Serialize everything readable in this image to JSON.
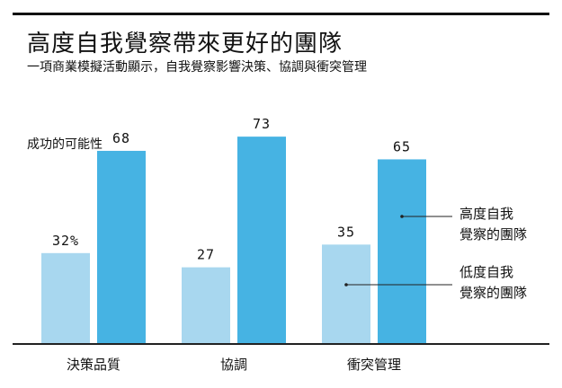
{
  "title": "高度自我覺察帶來更好的團隊",
  "subtitle": "一項商業模擬活動顯示，自我覺察影響決策、協調與衝突管理",
  "colors": {
    "high": "#46b3e3",
    "low": "#a8d7ef",
    "axis": "#222222",
    "text": "#111111"
  },
  "chart_data": {
    "type": "bar",
    "ylabel": "成功的可能性",
    "categories": [
      "決策品質",
      "協調",
      "衝突管理"
    ],
    "series": [
      {
        "name": "低度自我覺察的團隊",
        "values": [
          32,
          27,
          35
        ],
        "value_labels": [
          "32%",
          "27",
          "35"
        ],
        "legend_lines": [
          "低度自我",
          "覺察的團隊"
        ]
      },
      {
        "name": "高度自我覺察的團隊",
        "values": [
          68,
          73,
          65
        ],
        "value_labels": [
          "68",
          "73",
          "65"
        ],
        "legend_lines": [
          "高度自我",
          "覺察的團隊"
        ]
      }
    ],
    "ylim": [
      0,
      80
    ],
    "grid": false,
    "legend": "right, with leader lines to the last category"
  }
}
